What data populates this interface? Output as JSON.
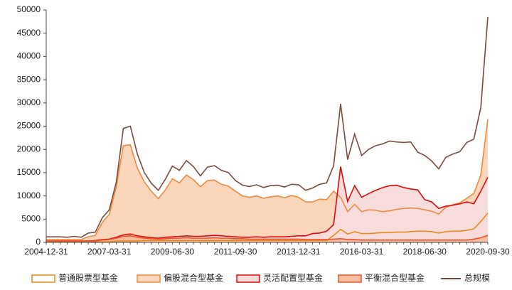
{
  "chart_data": {
    "type": "line",
    "categories": [
      "2004-12-31",
      null,
      null,
      null,
      null,
      null,
      null,
      null,
      null,
      "2007-03-31",
      null,
      null,
      null,
      null,
      null,
      null,
      null,
      null,
      "2009-06-30",
      null,
      null,
      null,
      null,
      null,
      null,
      null,
      null,
      "2011-09-30",
      null,
      null,
      null,
      null,
      null,
      null,
      null,
      null,
      "2013-12-31",
      null,
      null,
      null,
      null,
      null,
      null,
      null,
      null,
      "2016-03-31",
      null,
      null,
      null,
      null,
      null,
      null,
      null,
      null,
      "2018-06-30",
      null,
      null,
      null,
      null,
      null,
      null,
      null,
      null,
      "2020-09-30"
    ],
    "ylim": [
      0,
      50000
    ],
    "yticks": [
      0,
      5000,
      10000,
      15000,
      20000,
      25000,
      30000,
      35000,
      40000,
      45000,
      50000
    ],
    "series": [
      {
        "name": "普通股票型基金",
        "style": "area",
        "color": "#ee8a1a",
        "fill": null,
        "values": [
          100,
          100,
          100,
          100,
          100,
          100,
          100,
          100,
          100,
          100,
          300,
          300,
          300,
          300,
          400,
          400,
          400,
          400,
          400,
          400,
          400,
          400,
          400,
          400,
          400,
          400,
          400,
          400,
          400,
          400,
          400,
          400,
          400,
          400,
          400,
          400,
          400,
          400,
          400,
          400,
          400,
          1500,
          2800,
          1800,
          2300,
          1900,
          1900,
          2000,
          2100,
          2100,
          2200,
          2200,
          2300,
          2400,
          2400,
          2300,
          2000,
          2300,
          2400,
          2400,
          2600,
          2900,
          4500,
          6300
        ]
      },
      {
        "name": "偏股混合型基金",
        "style": "area",
        "color": "#ef8a3c",
        "fill": "#fbd6bb",
        "values": [
          600,
          600,
          600,
          600,
          600,
          600,
          1200,
          1500,
          4300,
          6000,
          12000,
          20800,
          21000,
          16000,
          13000,
          11000,
          9400,
          11300,
          13700,
          12800,
          14500,
          13500,
          12000,
          13300,
          13400,
          12500,
          12100,
          11000,
          10000,
          9700,
          10000,
          9500,
          9800,
          10000,
          9600,
          10100,
          9700,
          8700,
          8700,
          9300,
          9200,
          11000,
          9700,
          6600,
          8200,
          6600,
          7000,
          6900,
          6600,
          6800,
          7100,
          7300,
          7400,
          7300,
          7000,
          6700,
          6100,
          7500,
          8100,
          8500,
          9500,
          10500,
          14500,
          26500
        ]
      },
      {
        "name": "灵活配置型基金",
        "style": "area",
        "color": "#e00a0a",
        "fill": "#f9dcdc",
        "values": [
          300,
          300,
          300,
          300,
          300,
          300,
          300,
          400,
          600,
          700,
          1100,
          1600,
          1800,
          1400,
          1200,
          1000,
          900,
          1100,
          1200,
          1300,
          1400,
          1300,
          1300,
          1400,
          1500,
          1400,
          1300,
          1200,
          1100,
          1100,
          1200,
          1100,
          1200,
          1200,
          1200,
          1300,
          1400,
          1400,
          1900,
          2000,
          2400,
          3800,
          16300,
          8800,
          12200,
          9700,
          10500,
          11200,
          11800,
          12200,
          12300,
          11800,
          11500,
          11300,
          9200,
          8700,
          7300,
          7800,
          8000,
          8300,
          8700,
          8300,
          11000,
          14000
        ]
      },
      {
        "name": "平衡混合型基金",
        "style": "area",
        "color": "#e8552a",
        "fill": "#f7bda0",
        "values": [
          300,
          300,
          300,
          300,
          300,
          300,
          300,
          300,
          500,
          600,
          900,
          1300,
          1400,
          1100,
          900,
          800,
          700,
          800,
          900,
          900,
          1000,
          900,
          900,
          900,
          1000,
          900,
          900,
          800,
          800,
          700,
          700,
          700,
          700,
          700,
          700,
          700,
          700,
          600,
          600,
          600,
          600,
          700,
          800,
          600,
          600,
          500,
          500,
          500,
          500,
          500,
          500,
          500,
          500,
          500,
          500,
          500,
          500,
          500,
          500,
          500,
          500,
          700,
          1000,
          1500
        ]
      },
      {
        "name": "总规模",
        "style": "line",
        "color": "#7a4a3c",
        "fill": null,
        "values": [
          1200,
          1200,
          1200,
          1100,
          1300,
          1100,
          2000,
          2200,
          5300,
          7000,
          13000,
          24500,
          25000,
          19000,
          15000,
          12700,
          11200,
          13600,
          16400,
          15500,
          17600,
          16300,
          14300,
          16200,
          16500,
          15500,
          15000,
          13300,
          12300,
          12000,
          12400,
          11800,
          12200,
          12300,
          11900,
          12500,
          12400,
          11200,
          11700,
          12500,
          12800,
          16500,
          29800,
          17800,
          23300,
          18700,
          20000,
          20800,
          21200,
          21800,
          21600,
          21500,
          21600,
          19400,
          18700,
          17500,
          15800,
          18300,
          19000,
          19500,
          21500,
          22200,
          29000,
          48500
        ]
      }
    ]
  }
}
